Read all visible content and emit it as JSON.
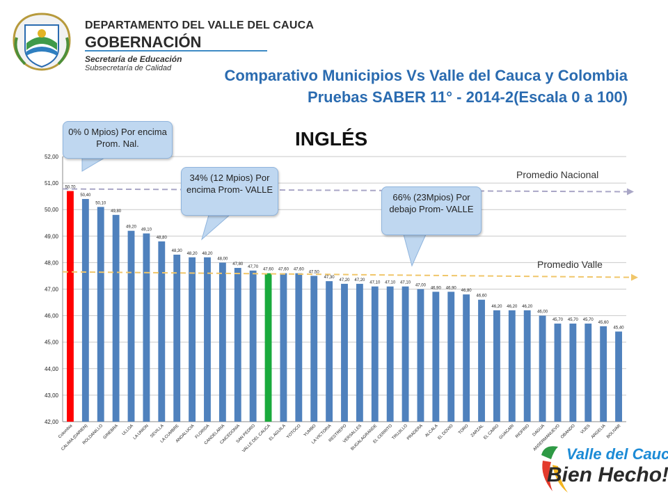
{
  "header": {
    "org_line1": "DEPARTAMENTO DEL VALLE DEL CAUCA",
    "org_line2": "GOBERNACIÓN",
    "org_line3": "Secretaría de Educación",
    "org_line4": "Subsecretaría de Calidad",
    "title_line1": "Comparativo Municipios Vs Valle del Cauca y Colombia",
    "title_line2": "Pruebas SABER 11° - 2014-2(Escala 0 a 100)"
  },
  "callouts": {
    "above_nacional": "0% 0 Mpios) Por encima Prom. Nal.",
    "above_valle": "34% (12 Mpios) Por encima Prom- VALLE",
    "below_valle": "66% (23Mpios) Por debajo Prom- VALLE"
  },
  "reference_lines": {
    "nacional_label": "Promedio Nacional",
    "valle_label": "Promedio Valle"
  },
  "brand": {
    "top": "Valle del Cauca",
    "bottom": "Bien Hecho!"
  },
  "colors": {
    "bar": "#4f81bd",
    "highlight_colombia": "#ff0000",
    "highlight_valle": "#1aaa3c",
    "nacional_line": "#a9a6c6",
    "valle_line": "#f0c66a",
    "title": "#2a6bb0"
  },
  "icons": {
    "crest": "department-crest-icon",
    "nacional_arrow": "arrow-right-icon",
    "valle_arrow": "arrow-right-icon"
  },
  "chart_data": {
    "type": "bar",
    "title": "INGLÉS",
    "ylim": [
      42,
      52
    ],
    "yticks": [
      "42,00",
      "43,00",
      "44,00",
      "45,00",
      "46,00",
      "47,00",
      "48,00",
      "49,00",
      "50,00",
      "51,00",
      "52,00"
    ],
    "categories": [
      "Colombia",
      "CALIMA (DARIEN)",
      "ROLDANILLO",
      "GINEBRA",
      "ULLOA",
      "LA UNION",
      "SEVILLA",
      "LA CUMBRE",
      "ANDALUCIA",
      "FLORIDA",
      "CANDELARIA",
      "CAICEDONIA",
      "SAN PEDRO",
      "VALLE DEL CAUCA",
      "EL AGUILA",
      "YOTOCO",
      "YUMBO",
      "LA VICTORIA",
      "RESTREPO",
      "VERSALLES",
      "BUGALAGRANDE",
      "EL CERRITO",
      "TRUJILLO",
      "PRADERA",
      "ALCALA",
      "EL DOVIO",
      "TORO",
      "ZARZAL",
      "EL CAIRO",
      "GUACARI",
      "RIOFRIO",
      "DAGUA",
      "ANSERMANUEVO",
      "OBANDO",
      "VIJES",
      "ARGELIA",
      "BOLIVAR"
    ],
    "values": [
      50.7,
      50.4,
      50.1,
      49.8,
      49.2,
      49.1,
      48.8,
      48.3,
      48.2,
      48.2,
      48.0,
      47.8,
      47.7,
      47.6,
      47.6,
      47.6,
      47.5,
      47.3,
      47.2,
      47.2,
      47.1,
      47.1,
      47.1,
      47.0,
      46.9,
      46.9,
      46.8,
      46.6,
      46.2,
      46.2,
      46.2,
      46.0,
      45.7,
      45.7,
      45.7,
      45.6,
      45.4
    ],
    "data_labels": [
      "50,70",
      "50,40",
      "50,10",
      "49,80",
      "49,20",
      "49,10",
      "48,80",
      "48,30",
      "48,20",
      "48,20",
      "48,00",
      "47,80",
      "47,70",
      "47,60",
      "47,60",
      "47,60",
      "47,50",
      "47,30",
      "47,20",
      "47,20",
      "47,10",
      "47,10",
      "47,10",
      "47,00",
      "46,90",
      "46,90",
      "46,80",
      "46,60",
      "46,20",
      "46,20",
      "46,20",
      "46,00",
      "45,70",
      "45,70",
      "45,70",
      "45,60",
      "45,40"
    ],
    "highlights": {
      "Colombia": "highlight_colombia",
      "VALLE DEL CAUCA": "highlight_valle"
    },
    "reference": {
      "nacional": 50.7,
      "valle": 47.6
    },
    "grid": true,
    "legend": "none"
  }
}
